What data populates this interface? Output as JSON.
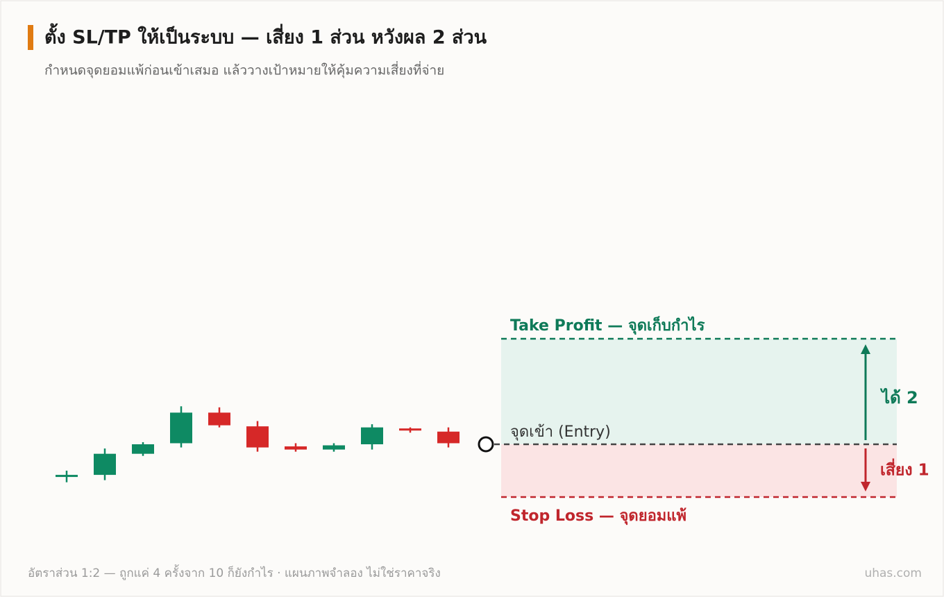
{
  "chart_data": {
    "type": "candlestick",
    "title": "ตั้ง SL/TP ให้เป็นระบบ — เสี่ยง 1 ส่วน หวังผล 2 ส่วน",
    "subtitle": "กำหนดจุดยอมแพ้ก่อนเข้าเสมอ แล้ววางเป้าหมายให้คุ้มความเสี่ยงที่จ่าย",
    "open": [
      97.0,
      97.1,
      99.1,
      100.1,
      103.0,
      101.7,
      99.8,
      99.5,
      100.0,
      101.5,
      101.2
    ],
    "high": [
      97.5,
      99.6,
      100.2,
      103.6,
      103.5,
      102.2,
      100.1,
      100.1,
      101.9,
      101.6,
      101.6
    ],
    "low": [
      96.4,
      96.6,
      98.9,
      99.7,
      101.6,
      99.3,
      99.3,
      99.3,
      99.5,
      101.1,
      99.7
    ],
    "close": [
      97.1,
      99.1,
      100.0,
      103.0,
      101.8,
      99.7,
      99.5,
      99.9,
      101.6,
      101.3,
      100.1
    ],
    "up_color": "#0e8a63",
    "down_color": "#d62828",
    "ylim": [
      90,
      115
    ],
    "entry": {
      "value": 100,
      "label": "จุดเข้า (Entry)"
    },
    "take_profit": {
      "value": 110,
      "label": "Take Profit — จุดเก็บกำไร",
      "color": "#0e7a58"
    },
    "stop_loss": {
      "value": 95,
      "label": "Stop Loss — จุดยอมแพ้",
      "color": "#c0262d"
    },
    "reward_label": "ได้ 2",
    "risk_label": "เสี่ยง 1",
    "footer": "อัตราส่วน 1:2 — ถูกแค่ 4 ครั้งจาก 10 ก็ยังกำไร · แผนภาพจำลอง ไม่ใช่ราคาจริง",
    "brand": "uhas.com"
  }
}
